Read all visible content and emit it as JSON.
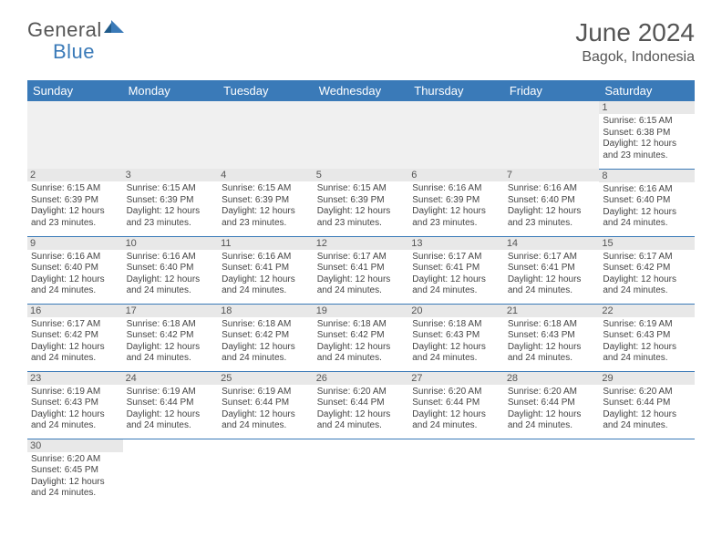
{
  "logo": {
    "part1": "General",
    "part2": "Blue"
  },
  "title": "June 2024",
  "location": "Bagok, Indonesia",
  "colors": {
    "header_bg": "#3a7ab8",
    "header_text": "#ffffff",
    "daynum_bg": "#e8e8e8",
    "row_divider": "#3a7ab8",
    "body_text": "#444444",
    "title_text": "#555555"
  },
  "day_headers": [
    "Sunday",
    "Monday",
    "Tuesday",
    "Wednesday",
    "Thursday",
    "Friday",
    "Saturday"
  ],
  "weeks": [
    [
      null,
      null,
      null,
      null,
      null,
      null,
      {
        "n": "1",
        "sr": "Sunrise: 6:15 AM",
        "ss": "Sunset: 6:38 PM",
        "d1": "Daylight: 12 hours",
        "d2": "and 23 minutes."
      }
    ],
    [
      {
        "n": "2",
        "sr": "Sunrise: 6:15 AM",
        "ss": "Sunset: 6:39 PM",
        "d1": "Daylight: 12 hours",
        "d2": "and 23 minutes."
      },
      {
        "n": "3",
        "sr": "Sunrise: 6:15 AM",
        "ss": "Sunset: 6:39 PM",
        "d1": "Daylight: 12 hours",
        "d2": "and 23 minutes."
      },
      {
        "n": "4",
        "sr": "Sunrise: 6:15 AM",
        "ss": "Sunset: 6:39 PM",
        "d1": "Daylight: 12 hours",
        "d2": "and 23 minutes."
      },
      {
        "n": "5",
        "sr": "Sunrise: 6:15 AM",
        "ss": "Sunset: 6:39 PM",
        "d1": "Daylight: 12 hours",
        "d2": "and 23 minutes."
      },
      {
        "n": "6",
        "sr": "Sunrise: 6:16 AM",
        "ss": "Sunset: 6:39 PM",
        "d1": "Daylight: 12 hours",
        "d2": "and 23 minutes."
      },
      {
        "n": "7",
        "sr": "Sunrise: 6:16 AM",
        "ss": "Sunset: 6:40 PM",
        "d1": "Daylight: 12 hours",
        "d2": "and 23 minutes."
      },
      {
        "n": "8",
        "sr": "Sunrise: 6:16 AM",
        "ss": "Sunset: 6:40 PM",
        "d1": "Daylight: 12 hours",
        "d2": "and 24 minutes."
      }
    ],
    [
      {
        "n": "9",
        "sr": "Sunrise: 6:16 AM",
        "ss": "Sunset: 6:40 PM",
        "d1": "Daylight: 12 hours",
        "d2": "and 24 minutes."
      },
      {
        "n": "10",
        "sr": "Sunrise: 6:16 AM",
        "ss": "Sunset: 6:40 PM",
        "d1": "Daylight: 12 hours",
        "d2": "and 24 minutes."
      },
      {
        "n": "11",
        "sr": "Sunrise: 6:16 AM",
        "ss": "Sunset: 6:41 PM",
        "d1": "Daylight: 12 hours",
        "d2": "and 24 minutes."
      },
      {
        "n": "12",
        "sr": "Sunrise: 6:17 AM",
        "ss": "Sunset: 6:41 PM",
        "d1": "Daylight: 12 hours",
        "d2": "and 24 minutes."
      },
      {
        "n": "13",
        "sr": "Sunrise: 6:17 AM",
        "ss": "Sunset: 6:41 PM",
        "d1": "Daylight: 12 hours",
        "d2": "and 24 minutes."
      },
      {
        "n": "14",
        "sr": "Sunrise: 6:17 AM",
        "ss": "Sunset: 6:41 PM",
        "d1": "Daylight: 12 hours",
        "d2": "and 24 minutes."
      },
      {
        "n": "15",
        "sr": "Sunrise: 6:17 AM",
        "ss": "Sunset: 6:42 PM",
        "d1": "Daylight: 12 hours",
        "d2": "and 24 minutes."
      }
    ],
    [
      {
        "n": "16",
        "sr": "Sunrise: 6:17 AM",
        "ss": "Sunset: 6:42 PM",
        "d1": "Daylight: 12 hours",
        "d2": "and 24 minutes."
      },
      {
        "n": "17",
        "sr": "Sunrise: 6:18 AM",
        "ss": "Sunset: 6:42 PM",
        "d1": "Daylight: 12 hours",
        "d2": "and 24 minutes."
      },
      {
        "n": "18",
        "sr": "Sunrise: 6:18 AM",
        "ss": "Sunset: 6:42 PM",
        "d1": "Daylight: 12 hours",
        "d2": "and 24 minutes."
      },
      {
        "n": "19",
        "sr": "Sunrise: 6:18 AM",
        "ss": "Sunset: 6:42 PM",
        "d1": "Daylight: 12 hours",
        "d2": "and 24 minutes."
      },
      {
        "n": "20",
        "sr": "Sunrise: 6:18 AM",
        "ss": "Sunset: 6:43 PM",
        "d1": "Daylight: 12 hours",
        "d2": "and 24 minutes."
      },
      {
        "n": "21",
        "sr": "Sunrise: 6:18 AM",
        "ss": "Sunset: 6:43 PM",
        "d1": "Daylight: 12 hours",
        "d2": "and 24 minutes."
      },
      {
        "n": "22",
        "sr": "Sunrise: 6:19 AM",
        "ss": "Sunset: 6:43 PM",
        "d1": "Daylight: 12 hours",
        "d2": "and 24 minutes."
      }
    ],
    [
      {
        "n": "23",
        "sr": "Sunrise: 6:19 AM",
        "ss": "Sunset: 6:43 PM",
        "d1": "Daylight: 12 hours",
        "d2": "and 24 minutes."
      },
      {
        "n": "24",
        "sr": "Sunrise: 6:19 AM",
        "ss": "Sunset: 6:44 PM",
        "d1": "Daylight: 12 hours",
        "d2": "and 24 minutes."
      },
      {
        "n": "25",
        "sr": "Sunrise: 6:19 AM",
        "ss": "Sunset: 6:44 PM",
        "d1": "Daylight: 12 hours",
        "d2": "and 24 minutes."
      },
      {
        "n": "26",
        "sr": "Sunrise: 6:20 AM",
        "ss": "Sunset: 6:44 PM",
        "d1": "Daylight: 12 hours",
        "d2": "and 24 minutes."
      },
      {
        "n": "27",
        "sr": "Sunrise: 6:20 AM",
        "ss": "Sunset: 6:44 PM",
        "d1": "Daylight: 12 hours",
        "d2": "and 24 minutes."
      },
      {
        "n": "28",
        "sr": "Sunrise: 6:20 AM",
        "ss": "Sunset: 6:44 PM",
        "d1": "Daylight: 12 hours",
        "d2": "and 24 minutes."
      },
      {
        "n": "29",
        "sr": "Sunrise: 6:20 AM",
        "ss": "Sunset: 6:44 PM",
        "d1": "Daylight: 12 hours",
        "d2": "and 24 minutes."
      }
    ],
    [
      {
        "n": "30",
        "sr": "Sunrise: 6:20 AM",
        "ss": "Sunset: 6:45 PM",
        "d1": "Daylight: 12 hours",
        "d2": "and 24 minutes."
      },
      null,
      null,
      null,
      null,
      null,
      null
    ]
  ]
}
